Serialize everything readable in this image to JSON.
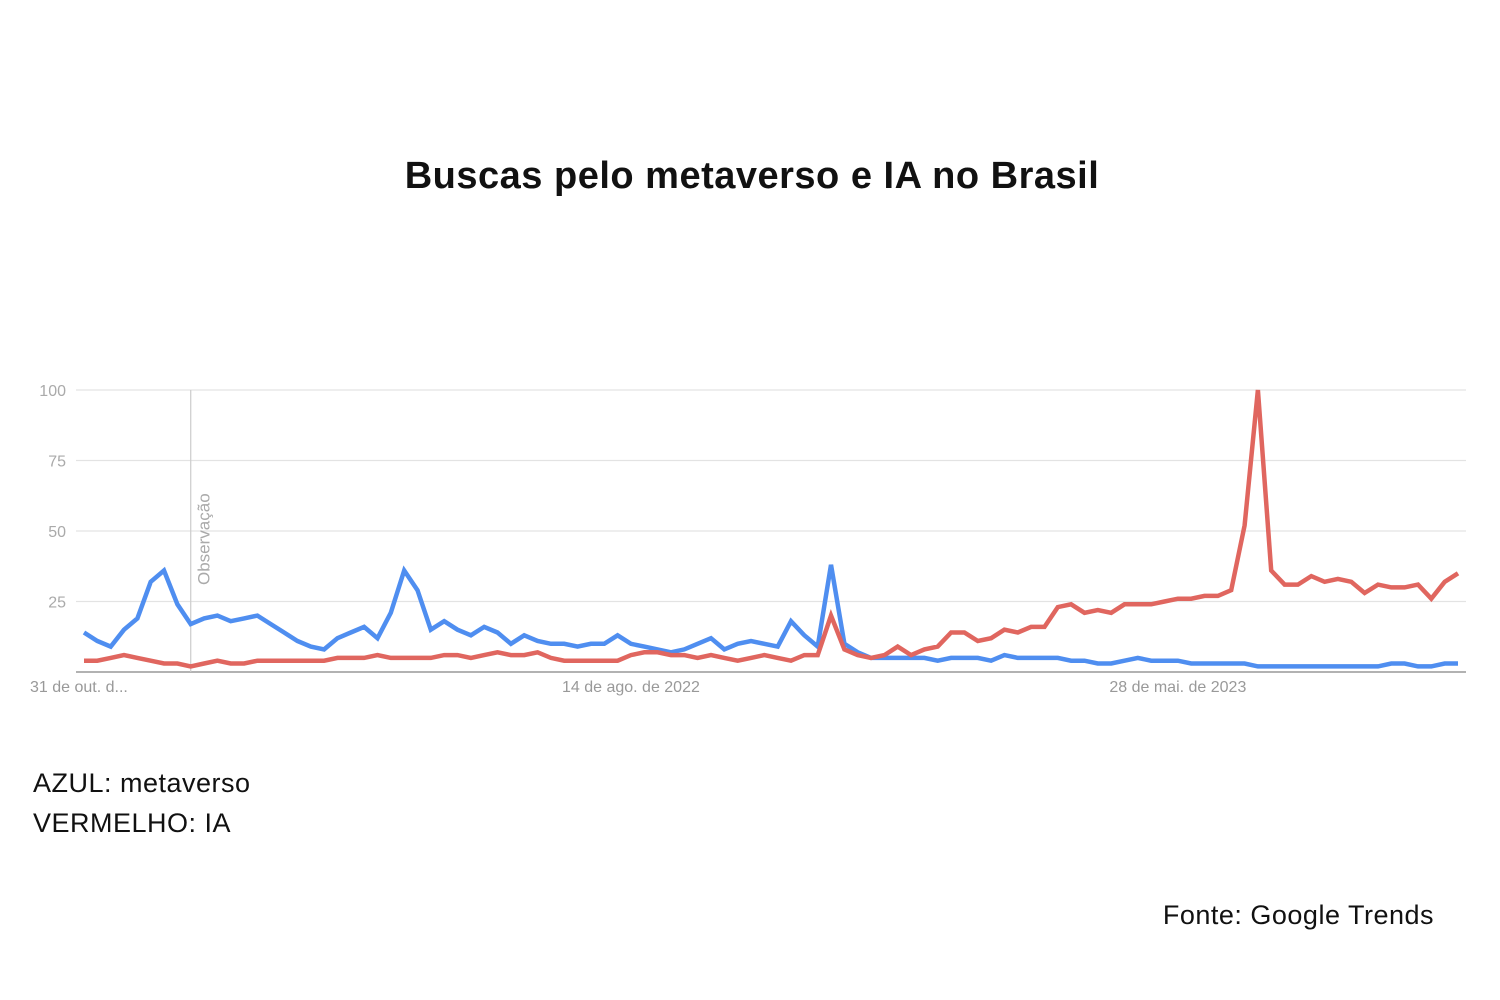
{
  "title": "Buscas pelo metaverso e IA no Brasil",
  "legend": {
    "blue": "AZUL: metaverso",
    "red": "VERMELHO: IA"
  },
  "source": "Fonte: Google Trends",
  "chart_data": {
    "type": "line",
    "title": "Buscas pelo metaverso e IA no Brasil",
    "ylim": [
      0,
      100
    ],
    "yticks": [
      25,
      50,
      75,
      100
    ],
    "grid": true,
    "xtick_labels": [
      {
        "index": 0,
        "label": "31 de out. d..."
      },
      {
        "index": 41,
        "label": "14 de ago. de 2022"
      },
      {
        "index": 82,
        "label": "28 de mai. de 2023"
      }
    ],
    "annotation": {
      "index": 8,
      "label": "Observação"
    },
    "series": [
      {
        "name": "metaverso",
        "color": "#4f8ef0",
        "values": [
          14,
          11,
          9,
          15,
          19,
          32,
          36,
          24,
          17,
          19,
          20,
          18,
          19,
          20,
          17,
          14,
          11,
          9,
          8,
          12,
          14,
          16,
          12,
          21,
          36,
          29,
          15,
          18,
          15,
          13,
          16,
          14,
          10,
          13,
          11,
          10,
          10,
          9,
          10,
          10,
          13,
          10,
          9,
          8,
          7,
          8,
          10,
          12,
          8,
          10,
          11,
          10,
          9,
          18,
          13,
          9,
          38,
          10,
          7,
          5,
          5,
          5,
          5,
          5,
          4,
          5,
          5,
          5,
          4,
          6,
          5,
          5,
          5,
          5,
          4,
          4,
          3,
          3,
          4,
          5,
          4,
          4,
          4,
          3,
          3,
          3,
          3,
          3,
          2,
          2,
          2,
          2,
          2,
          2,
          2,
          2,
          2,
          2,
          3,
          3,
          2,
          2,
          3,
          3
        ]
      },
      {
        "name": "IA",
        "color": "#e0665f",
        "values": [
          4,
          4,
          5,
          6,
          5,
          4,
          3,
          3,
          2,
          3,
          4,
          3,
          3,
          4,
          4,
          4,
          4,
          4,
          4,
          5,
          5,
          5,
          6,
          5,
          5,
          5,
          5,
          6,
          6,
          5,
          6,
          7,
          6,
          6,
          7,
          5,
          4,
          4,
          4,
          4,
          4,
          6,
          7,
          7,
          6,
          6,
          5,
          6,
          5,
          4,
          5,
          6,
          5,
          4,
          6,
          6,
          20,
          8,
          6,
          5,
          6,
          9,
          6,
          8,
          9,
          14,
          14,
          11,
          12,
          15,
          14,
          16,
          16,
          23,
          24,
          21,
          22,
          21,
          24,
          24,
          24,
          25,
          26,
          26,
          27,
          27,
          29,
          52,
          100,
          36,
          31,
          31,
          34,
          32,
          33,
          32,
          28,
          31,
          30,
          30,
          31,
          26,
          32,
          35
        ]
      }
    ]
  }
}
